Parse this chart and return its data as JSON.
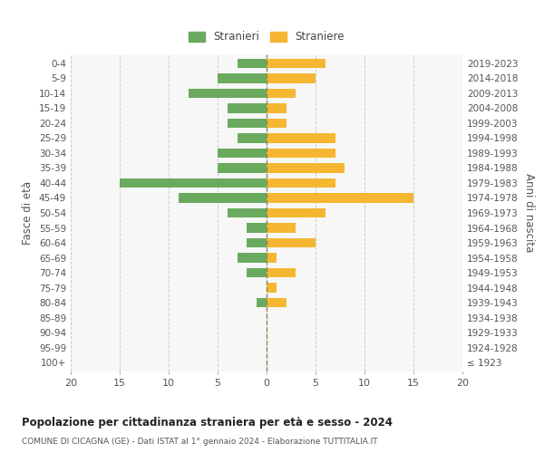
{
  "age_groups": [
    "100+",
    "95-99",
    "90-94",
    "85-89",
    "80-84",
    "75-79",
    "70-74",
    "65-69",
    "60-64",
    "55-59",
    "50-54",
    "45-49",
    "40-44",
    "35-39",
    "30-34",
    "25-29",
    "20-24",
    "15-19",
    "10-14",
    "5-9",
    "0-4"
  ],
  "birth_years": [
    "≤ 1923",
    "1924-1928",
    "1929-1933",
    "1934-1938",
    "1939-1943",
    "1944-1948",
    "1949-1953",
    "1954-1958",
    "1959-1963",
    "1964-1968",
    "1969-1973",
    "1974-1978",
    "1979-1983",
    "1984-1988",
    "1989-1993",
    "1994-1998",
    "1999-2003",
    "2004-2008",
    "2009-2013",
    "2014-2018",
    "2019-2023"
  ],
  "males": [
    0,
    0,
    0,
    0,
    1,
    0,
    2,
    3,
    2,
    2,
    4,
    9,
    15,
    5,
    5,
    3,
    4,
    4,
    8,
    5,
    3
  ],
  "females": [
    0,
    0,
    0,
    0,
    2,
    1,
    3,
    1,
    5,
    3,
    6,
    15,
    7,
    8,
    7,
    7,
    2,
    2,
    3,
    5,
    6
  ],
  "male_color": "#6aaa5f",
  "female_color": "#f5b731",
  "male_label": "Stranieri",
  "female_label": "Straniere",
  "title": "Popolazione per cittadinanza straniera per età e sesso - 2024",
  "subtitle": "COMUNE DI CICAGNA (GE) - Dati ISTAT al 1° gennaio 2024 - Elaborazione TUTTITALIA.IT",
  "ylabel_left": "Fasce di età",
  "ylabel_right": "Anni di nascita",
  "xlim": 20,
  "background_color": "#ffffff",
  "grid_color": "#cccccc"
}
